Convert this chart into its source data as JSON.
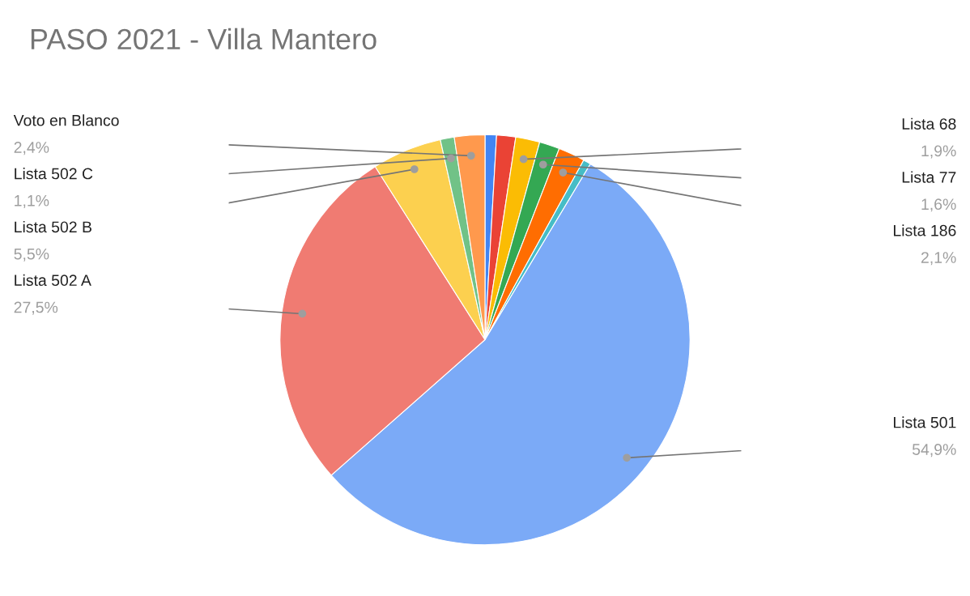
{
  "chart_data": {
    "type": "pie",
    "title": "PASO 2021 - Villa Mantero",
    "categories": [
      null,
      null,
      "Lista 68",
      "Lista 77",
      "Lista 186",
      null,
      "Lista 501",
      "Lista 502 A",
      "Lista 502 B",
      "Lista 502 C",
      "Voto en Blanco"
    ],
    "values": [
      0.9,
      1.5,
      1.9,
      1.6,
      2.1,
      0.6,
      54.9,
      27.5,
      5.5,
      1.1,
      2.4
    ],
    "value_labels": [
      null,
      null,
      "1,9%",
      "1,6%",
      "2,1%",
      null,
      "54,9%",
      "27,5%",
      "5,5%",
      "1,1%",
      "2,4%"
    ],
    "colors": [
      "#4285f4",
      "#ea4335",
      "#fbbc04",
      "#34a853",
      "#ff6d01",
      "#46bdc6",
      "#7baaf7",
      "#f07b72",
      "#fcd04f",
      "#71c287",
      "#ff994d"
    ],
    "legend": false
  }
}
